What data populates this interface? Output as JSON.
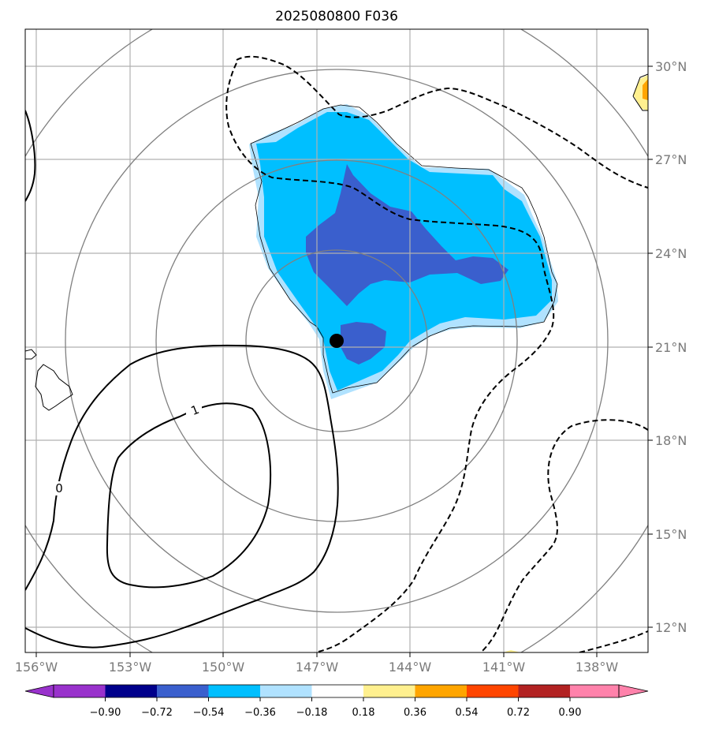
{
  "title": "2025080800 F036",
  "map": {
    "longitudes": [
      "156°W",
      "153°W",
      "150°W",
      "147°W",
      "144°W",
      "141°W",
      "138°W"
    ],
    "latitudes": [
      "30°N",
      "27°N",
      "24°N",
      "21°N",
      "18°N",
      "15°N",
      "12°N"
    ],
    "contour_labels": [
      "1",
      "0"
    ],
    "storm_center": {
      "lon": -147.2,
      "lat": 21.2
    },
    "colors": {
      "grid": "#b0b0b0",
      "range_rings": "#808080",
      "coast": "#000000",
      "marker": "#000000"
    }
  },
  "colorbar": {
    "ticks": [
      "−0.90",
      "−0.72",
      "−0.54",
      "−0.36",
      "−0.18",
      "0.18",
      "0.36",
      "0.54",
      "0.72",
      "0.90"
    ],
    "colors": [
      "#9932cc",
      "#00008b",
      "#3a5fcd",
      "#00bfff",
      "#b0e2ff",
      "#ffffff",
      "#fff08f",
      "#ffa500",
      "#ff4500",
      "#b22222",
      "#ff82ab"
    ]
  }
}
